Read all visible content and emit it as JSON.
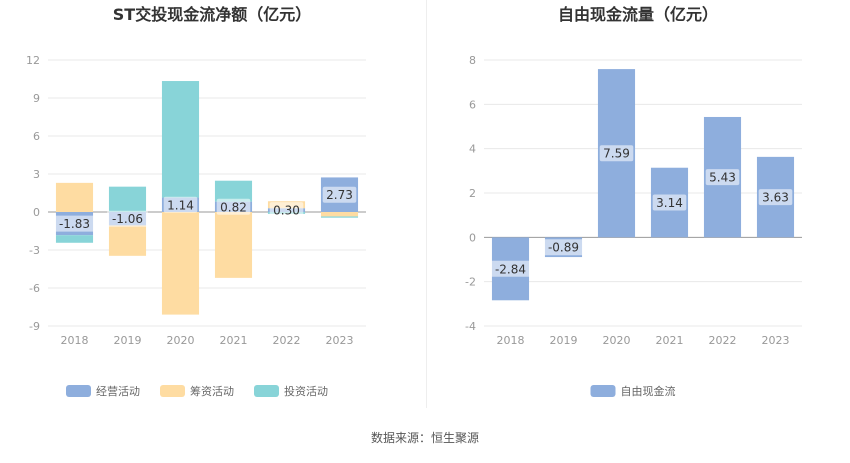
{
  "source": "数据来源：恒生聚源",
  "chart_data": [
    {
      "type": "bar",
      "stacked": true,
      "title": "ST交投现金流净额（亿元）",
      "categories": [
        "2018",
        "2019",
        "2020",
        "2021",
        "2022",
        "2023"
      ],
      "y_ticks": [
        "12",
        "9",
        "6",
        "3",
        "0",
        "-3",
        "-6",
        "-9"
      ],
      "ylim": [
        -9,
        12
      ],
      "grid": true,
      "legend_position": "bottom",
      "series": [
        {
          "name": "经营活动",
          "color": "#8eaedd",
          "values": [
            -1.83,
            -1.06,
            1.14,
            0.82,
            0.3,
            2.73
          ],
          "labels": [
            "-1.83",
            "-1.06",
            "1.14",
            "0.82",
            "0.30",
            "2.73"
          ]
        },
        {
          "name": "筹资活动",
          "color": "#fedca2",
          "values": [
            2.3,
            -2.4,
            -8.1,
            -5.2,
            0.55,
            -0.35
          ]
        },
        {
          "name": "投资活动",
          "color": "#88d4d8",
          "values": [
            -0.6,
            2.0,
            9.2,
            1.65,
            -0.15,
            -0.1
          ]
        }
      ]
    },
    {
      "type": "bar",
      "title": "自由现金流量（亿元）",
      "categories": [
        "2018",
        "2019",
        "2020",
        "2021",
        "2022",
        "2023"
      ],
      "y_ticks": [
        "8",
        "6",
        "4",
        "2",
        "0",
        "-2",
        "-4"
      ],
      "ylim": [
        -4,
        8
      ],
      "grid": true,
      "legend_position": "bottom",
      "series": [
        {
          "name": "自由现金流",
          "color": "#8eaedd",
          "values": [
            -2.84,
            -0.89,
            7.59,
            3.14,
            5.43,
            3.63
          ],
          "labels": [
            "-2.84",
            "-0.89",
            "7.59",
            "3.14",
            "5.43",
            "3.63"
          ]
        }
      ]
    }
  ]
}
